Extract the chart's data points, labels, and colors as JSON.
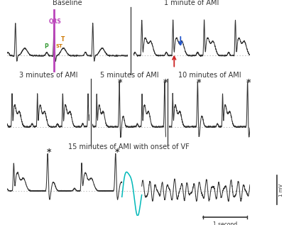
{
  "title_baseline": "Baseline",
  "title_1min": "1 minute of AMI",
  "title_3min": "3 minutes of AMI",
  "title_5min": "5 minutes of AMI",
  "title_10min": "10 minutes of AMI",
  "title_15min": "15 minutes of AMI with onset of VF",
  "bg_color": "#ffffff",
  "ecg_color": "#333333",
  "teal_color": "#00b8b8",
  "p_color": "#339933",
  "qrs_color": "#bb44bb",
  "st_color": "#cc7700",
  "t_color": "#cc7700",
  "red_arrow_color": "#cc2222",
  "blue_arrow_color": "#2255cc",
  "scale_bar_color": "#333333",
  "divider_color": "#333333",
  "dashed_color": "#aaaaaa",
  "title_fontsize": 7.0,
  "annot_fontsize": 5.5,
  "star_fontsize": 9
}
